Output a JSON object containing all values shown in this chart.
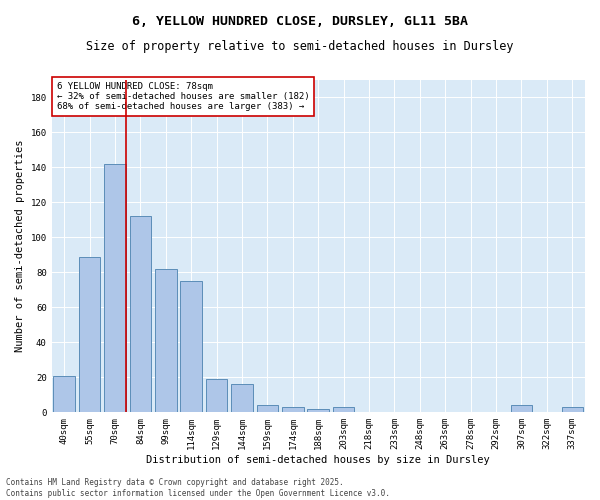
{
  "title": "6, YELLOW HUNDRED CLOSE, DURSLEY, GL11 5BA",
  "subtitle": "Size of property relative to semi-detached houses in Dursley",
  "xlabel": "Distribution of semi-detached houses by size in Dursley",
  "ylabel": "Number of semi-detached properties",
  "categories": [
    "40sqm",
    "55sqm",
    "70sqm",
    "84sqm",
    "99sqm",
    "114sqm",
    "129sqm",
    "144sqm",
    "159sqm",
    "174sqm",
    "188sqm",
    "203sqm",
    "218sqm",
    "233sqm",
    "248sqm",
    "263sqm",
    "278sqm",
    "292sqm",
    "307sqm",
    "322sqm",
    "337sqm"
  ],
  "values": [
    21,
    89,
    142,
    112,
    82,
    75,
    19,
    16,
    4,
    3,
    2,
    3,
    0,
    0,
    0,
    0,
    0,
    0,
    4,
    0,
    3
  ],
  "bar_color": "#aec6e8",
  "bar_edge_color": "#5b8db8",
  "background_color": "#daeaf7",
  "vline_x_bar_index": 2,
  "vline_color": "#cc0000",
  "annotation_text": "6 YELLOW HUNDRED CLOSE: 78sqm\n← 32% of semi-detached houses are smaller (182)\n68% of semi-detached houses are larger (383) →",
  "annotation_box_color": "#ffffff",
  "annotation_box_edge": "#cc0000",
  "ylim": [
    0,
    190
  ],
  "yticks": [
    0,
    20,
    40,
    60,
    80,
    100,
    120,
    140,
    160,
    180
  ],
  "footer": "Contains HM Land Registry data © Crown copyright and database right 2025.\nContains public sector information licensed under the Open Government Licence v3.0.",
  "title_fontsize": 9.5,
  "subtitle_fontsize": 8.5,
  "label_fontsize": 7.5,
  "tick_fontsize": 6.5,
  "annotation_fontsize": 6.5,
  "footer_fontsize": 5.5
}
